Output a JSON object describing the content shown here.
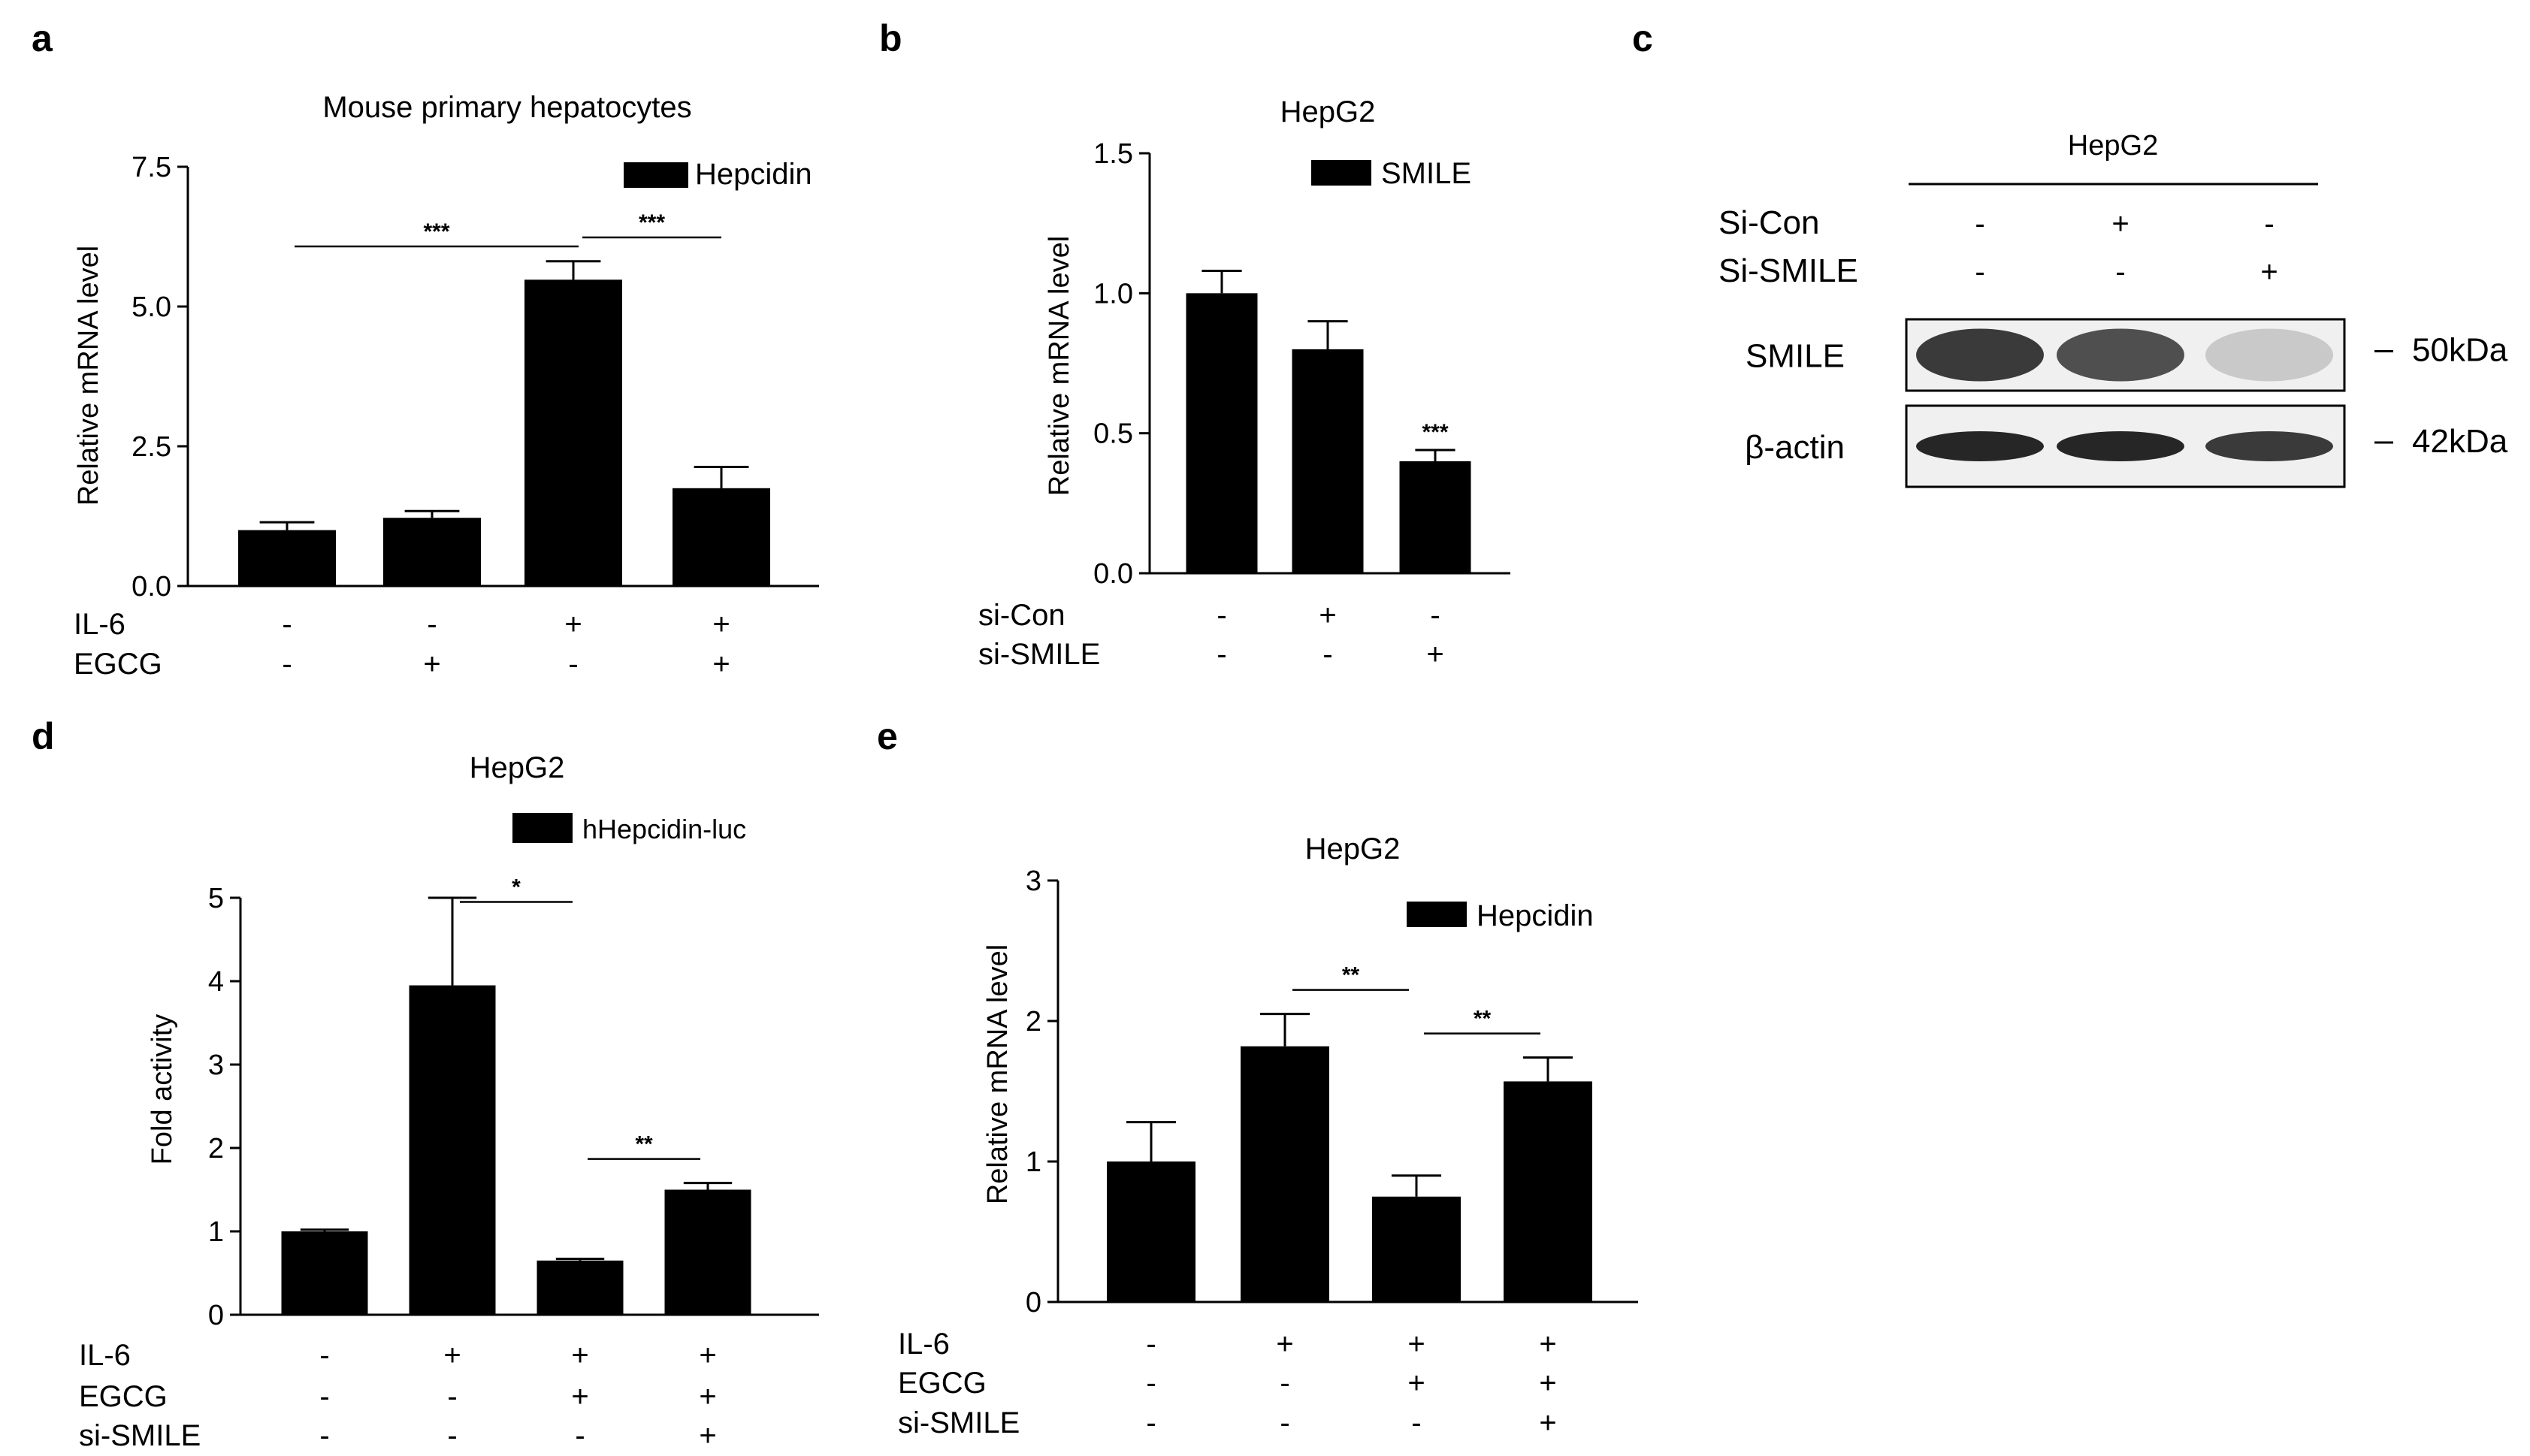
{
  "chart_data": [
    {
      "panel": "a",
      "type": "bar",
      "title": "Mouse primary hepatocytes",
      "ylabel": "Relative mRNA level",
      "ylim": [
        0,
        7.5
      ],
      "yticks": [
        "0.0",
        "2.5",
        "5.0",
        "7.5"
      ],
      "series": [
        {
          "name": "Hepcidin",
          "values": [
            1.0,
            1.22,
            5.48,
            1.75
          ],
          "errors": [
            0.14,
            0.12,
            0.33,
            0.38
          ]
        }
      ],
      "conditions": [
        {
          "label": "IL-6",
          "signs": [
            "-",
            "-",
            "+",
            "+"
          ]
        },
        {
          "label": "EGCG",
          "signs": [
            "-",
            "+",
            "-",
            "+"
          ]
        }
      ],
      "significance": [
        {
          "from": 0,
          "to": 2,
          "label": "***"
        },
        {
          "from": 2,
          "to": 3,
          "label": "***"
        }
      ]
    },
    {
      "panel": "b",
      "type": "bar",
      "title": "HepG2",
      "ylabel": "Relative mRNA level",
      "ylim": [
        0,
        1.5
      ],
      "yticks": [
        "0.0",
        "0.5",
        "1.0",
        "1.5"
      ],
      "series": [
        {
          "name": "SMILE",
          "values": [
            1.0,
            0.8,
            0.4
          ],
          "errors": [
            0.08,
            0.1,
            0.04
          ]
        }
      ],
      "conditions": [
        {
          "label": "si-Con",
          "signs": [
            "-",
            "+",
            "-"
          ]
        },
        {
          "label": "si-SMILE",
          "signs": [
            "-",
            "-",
            "+"
          ]
        }
      ],
      "bar_labels": [
        "",
        "",
        "***"
      ]
    },
    {
      "panel": "d",
      "type": "bar",
      "title": "HepG2",
      "ylabel": "Fold activity",
      "ylim": [
        0,
        5
      ],
      "yticks": [
        "0",
        "1",
        "2",
        "3",
        "4",
        "5"
      ],
      "series": [
        {
          "name": "hHepcidin-luc",
          "values": [
            1.0,
            3.95,
            0.65,
            1.5
          ],
          "errors": [
            0.02,
            1.05,
            0.02,
            0.08
          ]
        }
      ],
      "conditions": [
        {
          "label": "IL-6",
          "signs": [
            "-",
            "+",
            "+",
            "+"
          ]
        },
        {
          "label": "EGCG",
          "signs": [
            "-",
            "-",
            "+",
            "+"
          ]
        },
        {
          "label": "si-SMILE",
          "signs": [
            "-",
            "-",
            "-",
            "+"
          ]
        }
      ],
      "significance": [
        {
          "from": 1,
          "to": 2,
          "label": "*"
        },
        {
          "from": 2,
          "to": 3,
          "label": "**"
        }
      ]
    },
    {
      "panel": "e",
      "type": "bar",
      "title": "HepG2",
      "ylabel": "Relative mRNA level",
      "ylim": [
        0,
        3
      ],
      "yticks": [
        "0",
        "1",
        "2",
        "3"
      ],
      "series": [
        {
          "name": "Hepcidin",
          "values": [
            1.0,
            1.82,
            0.75,
            1.57
          ],
          "errors": [
            0.28,
            0.23,
            0.15,
            0.17
          ]
        }
      ],
      "conditions": [
        {
          "label": "IL-6",
          "signs": [
            "-",
            "+",
            "+",
            "+"
          ]
        },
        {
          "label": "EGCG",
          "signs": [
            "-",
            "-",
            "+",
            "+"
          ]
        },
        {
          "label": "si-SMILE",
          "signs": [
            "-",
            "-",
            "-",
            "+"
          ]
        }
      ],
      "significance": [
        {
          "from": 1,
          "to": 2,
          "label": "**"
        },
        {
          "from": 2,
          "to": 3,
          "label": "**"
        }
      ]
    }
  ],
  "blot": {
    "panel": "c",
    "title": "HepG2",
    "conditions": [
      {
        "label": "Si-Con",
        "signs": [
          "-",
          "+",
          "-"
        ]
      },
      {
        "label": "Si-SMILE",
        "signs": [
          "-",
          "-",
          "+"
        ]
      }
    ],
    "rows": [
      {
        "label": "SMILE",
        "size": "50kDa",
        "intensities": [
          0.85,
          0.75,
          0.18
        ]
      },
      {
        "label": "β-actin",
        "size": "42kDa",
        "intensities": [
          0.95,
          0.95,
          0.85
        ]
      }
    ]
  },
  "colors": {
    "bar": "#000000",
    "band": "#1a1a1a",
    "membrane": "#f0f0f0"
  }
}
